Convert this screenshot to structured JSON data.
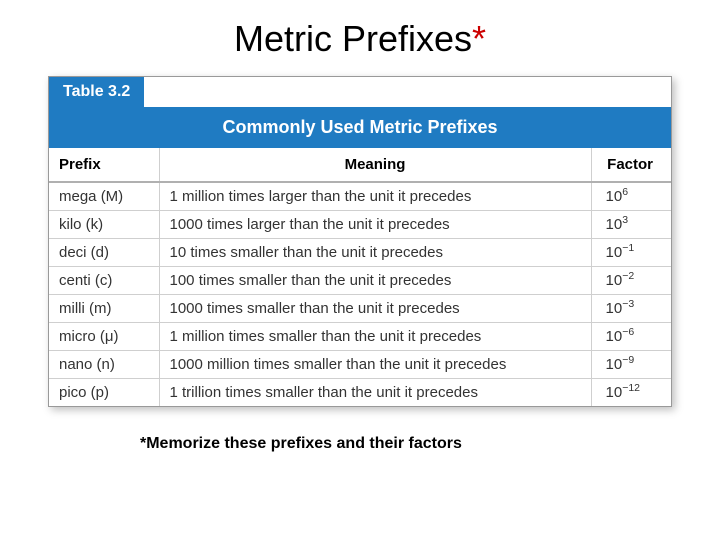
{
  "title": {
    "main": "Metric Prefixes",
    "asterisk": "*"
  },
  "table": {
    "tab_label": "Table 3.2",
    "title": "Commonly Used Metric Prefixes",
    "columns": [
      "Prefix",
      "Meaning",
      "Factor"
    ],
    "rows": [
      {
        "prefix": "mega (M)",
        "meaning": "1 million times larger than the unit it precedes",
        "factor_base": "10",
        "factor_exp": "6"
      },
      {
        "prefix": "kilo (k)",
        "meaning": "1000 times larger than the unit it precedes",
        "factor_base": "10",
        "factor_exp": "3"
      },
      {
        "prefix": "deci (d)",
        "meaning": "10 times smaller than the unit it precedes",
        "factor_base": "10",
        "factor_exp": "−1"
      },
      {
        "prefix": "centi (c)",
        "meaning": "100 times smaller than the unit it precedes",
        "factor_base": "10",
        "factor_exp": "−2"
      },
      {
        "prefix": "milli (m)",
        "meaning": "1000 times smaller than the unit it precedes",
        "factor_base": "10",
        "factor_exp": "−3"
      },
      {
        "prefix": "micro (μ)",
        "meaning": "1 million times smaller than the unit it precedes",
        "factor_base": "10",
        "factor_exp": "−6"
      },
      {
        "prefix": "nano (n)",
        "meaning": "1000 million times smaller than the unit it precedes",
        "factor_base": "10",
        "factor_exp": "−9"
      },
      {
        "prefix": "pico (p)",
        "meaning": "1 trillion times smaller than the unit it precedes",
        "factor_base": "10",
        "factor_exp": "−12"
      }
    ]
  },
  "footnote": "*Memorize these prefixes and their factors",
  "colors": {
    "accent_blue": "#1f7bc2",
    "asterisk_red": "#cc0000",
    "grid": "#cfcfcf",
    "header_divider": "#b0b0b0"
  }
}
